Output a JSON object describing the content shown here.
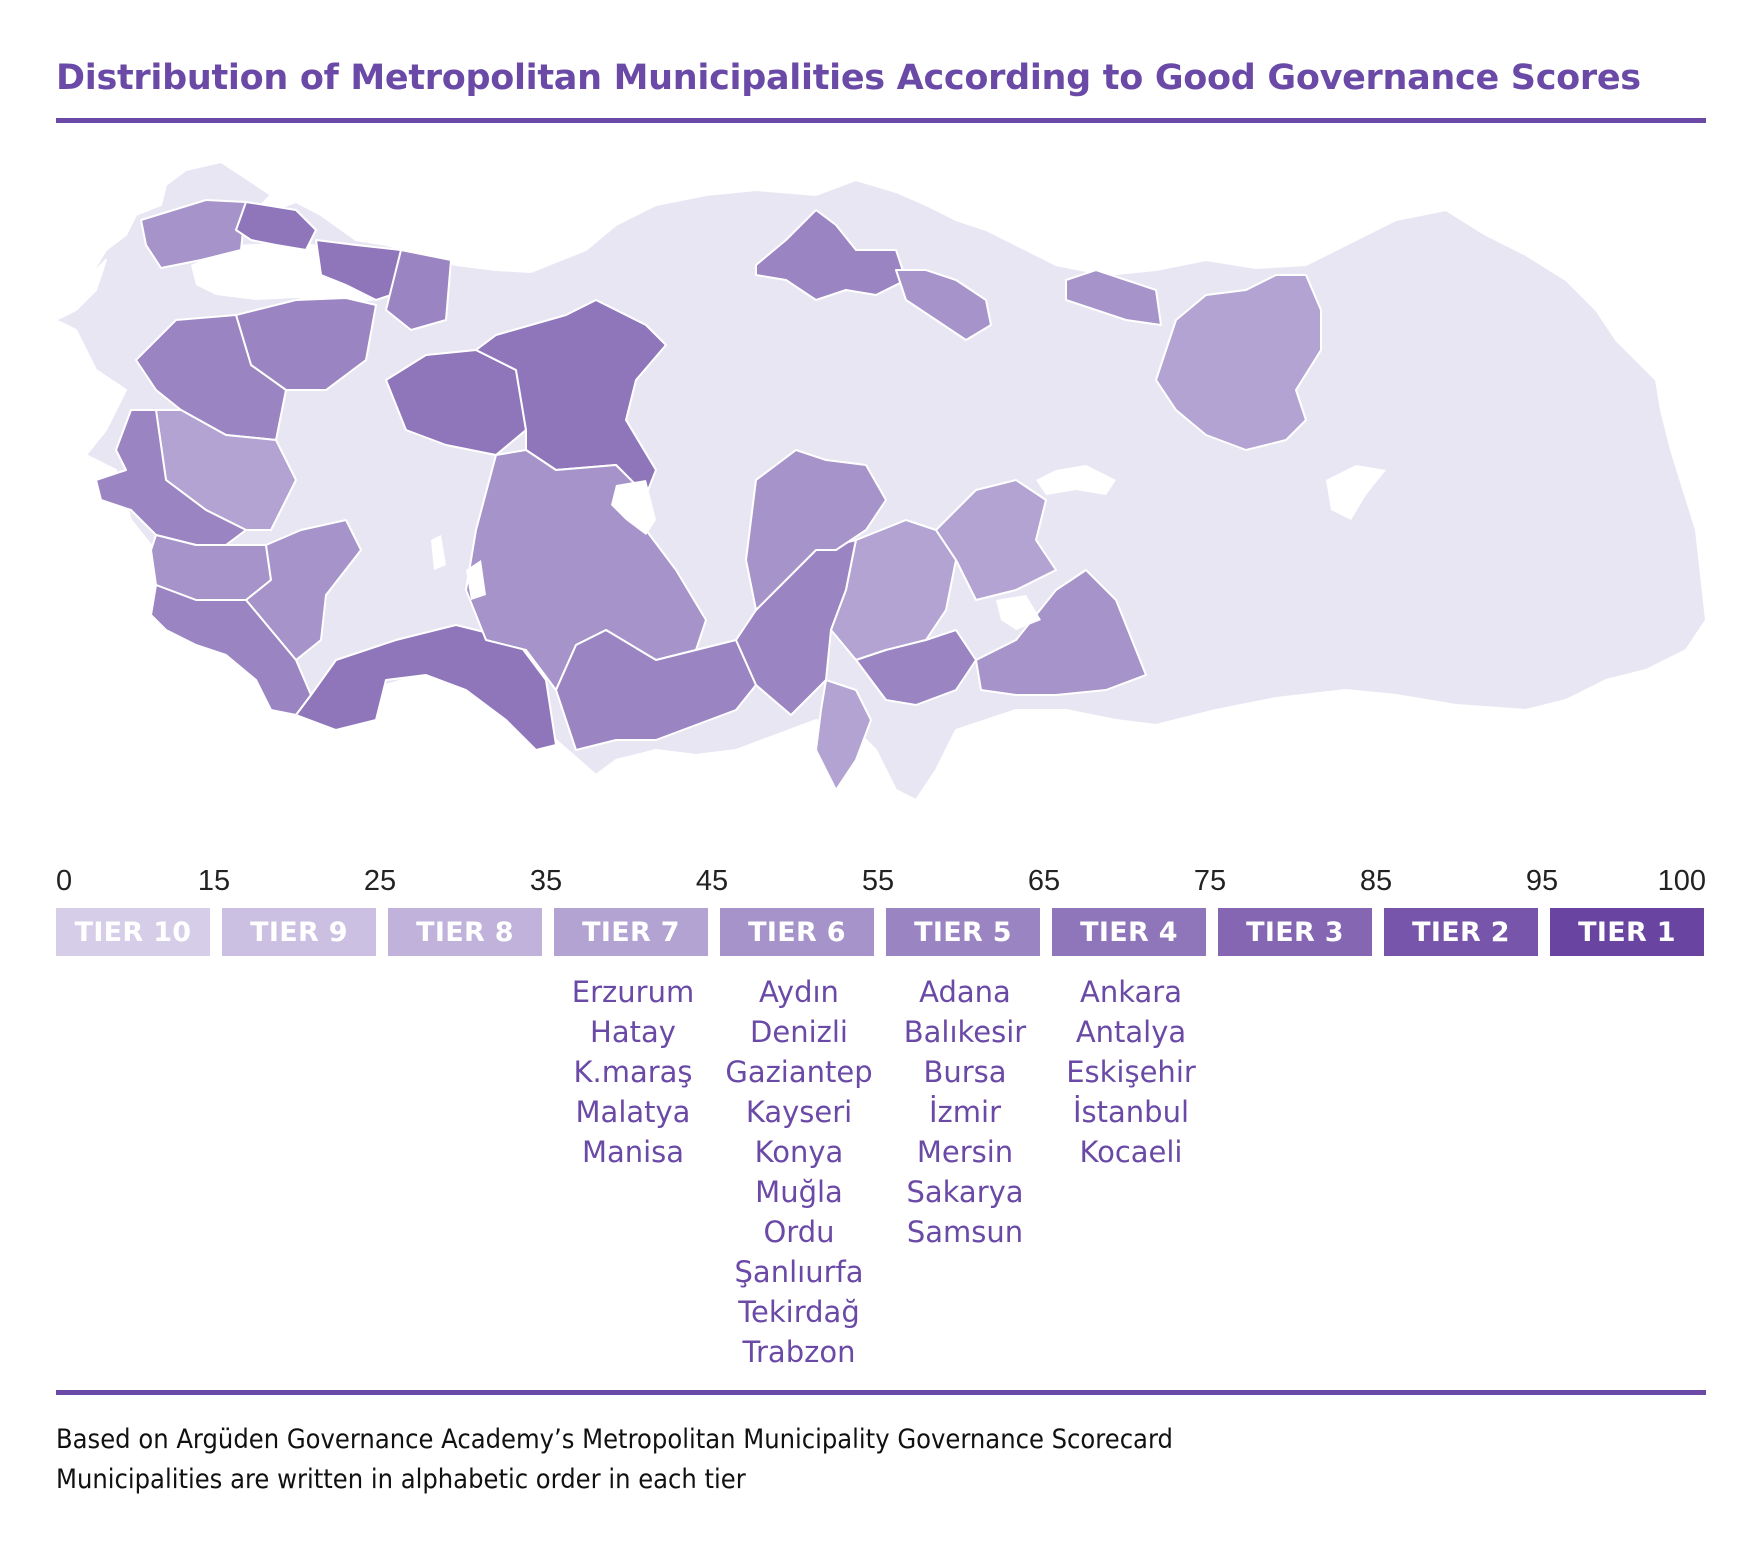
{
  "title": "Distribution of Metropolitan Municipalities According to Good Governance Scores",
  "colors": {
    "accent": "#6a4aa6",
    "no_data": "#e8e6f3",
    "tier10": "#d6cde8",
    "tier9": "#cbc0e2",
    "tier8": "#c0b2db",
    "tier7": "#b3a3d2",
    "tier6": "#a593c9",
    "tier5": "#9a84c2",
    "tier4": "#8f76bb",
    "tier3": "#8466b2",
    "tier2": "#7755aa",
    "tier1": "#6a44a1"
  },
  "scale_ticks": [
    "0",
    "15",
    "25",
    "35",
    "45",
    "55",
    "65",
    "75",
    "85",
    "95",
    "100"
  ],
  "tiers": [
    {
      "label": "TIER 10",
      "color": "#d6cde8",
      "municipalities": []
    },
    {
      "label": "TIER 9",
      "color": "#cbc0e2",
      "municipalities": []
    },
    {
      "label": "TIER 8",
      "color": "#c0b2db",
      "municipalities": []
    },
    {
      "label": "TIER 7",
      "color": "#b3a3d2",
      "municipalities": [
        "Erzurum",
        "Hatay",
        "K.maraş",
        "Malatya",
        "Manisa"
      ]
    },
    {
      "label": "TIER 6",
      "color": "#a593c9",
      "municipalities": [
        "Aydın",
        "Denizli",
        "Gaziantep",
        "Kayseri",
        "Konya",
        "Muğla",
        "Ordu",
        "Şanlıurfa",
        "Tekirdağ",
        "Trabzon"
      ]
    },
    {
      "label": "TIER 5",
      "color": "#9a84c2",
      "municipalities": [
        "Adana",
        "Balıkesir",
        "Bursa",
        "İzmir",
        "Mersin",
        "Sakarya",
        "Samsun"
      ]
    },
    {
      "label": "TIER 4",
      "color": "#8f76bb",
      "municipalities": [
        "Ankara",
        "Antalya",
        "Eskişehir",
        "İstanbul",
        "Kocaeli"
      ]
    },
    {
      "label": "TIER 3",
      "color": "#8466b2",
      "municipalities": []
    },
    {
      "label": "TIER 2",
      "color": "#7755aa",
      "municipalities": []
    },
    {
      "label": "TIER 1",
      "color": "#6a44a1",
      "municipalities": []
    }
  ],
  "notes": {
    "line1": "Based on Argüden Governance Academy’s Metropolitan Municipality Governance Scorecard",
    "line2": "Municipalities are written in alphabetic order in each tier"
  }
}
